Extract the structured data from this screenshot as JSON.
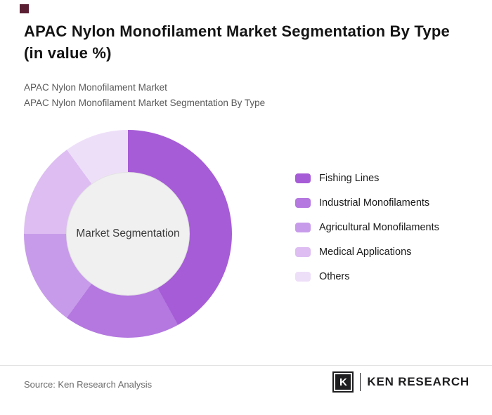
{
  "page": {
    "title": "APAC Nylon Monofilament Market Segmentation By Type (in value %)",
    "subtitle_1": "APAC Nylon Monofilament Market",
    "subtitle_2": "APAC Nylon Monofilament Market Segmentation By Type",
    "source": "Source: Ken Research Analysis",
    "brand": "KEN RESEARCH",
    "brand_k": "K",
    "brand_color": "#1e1e20",
    "accent_color": "#5b1f33"
  },
  "chart_data": {
    "type": "pie",
    "donut": true,
    "title": "APAC Nylon Monofilament Market Segmentation By Type (in value %)",
    "center_label": "Market Segmentation",
    "legend_position": "right",
    "categories": [
      "Fishing Lines",
      "Industrial Monofilaments",
      "Agricultural Monofilaments",
      "Medical Applications",
      "Others"
    ],
    "values": [
      42,
      18,
      15,
      15,
      10
    ],
    "colors": [
      "#a65cd6",
      "#b478e0",
      "#c89bea",
      "#ddbdf2",
      "#eedff9"
    ]
  }
}
